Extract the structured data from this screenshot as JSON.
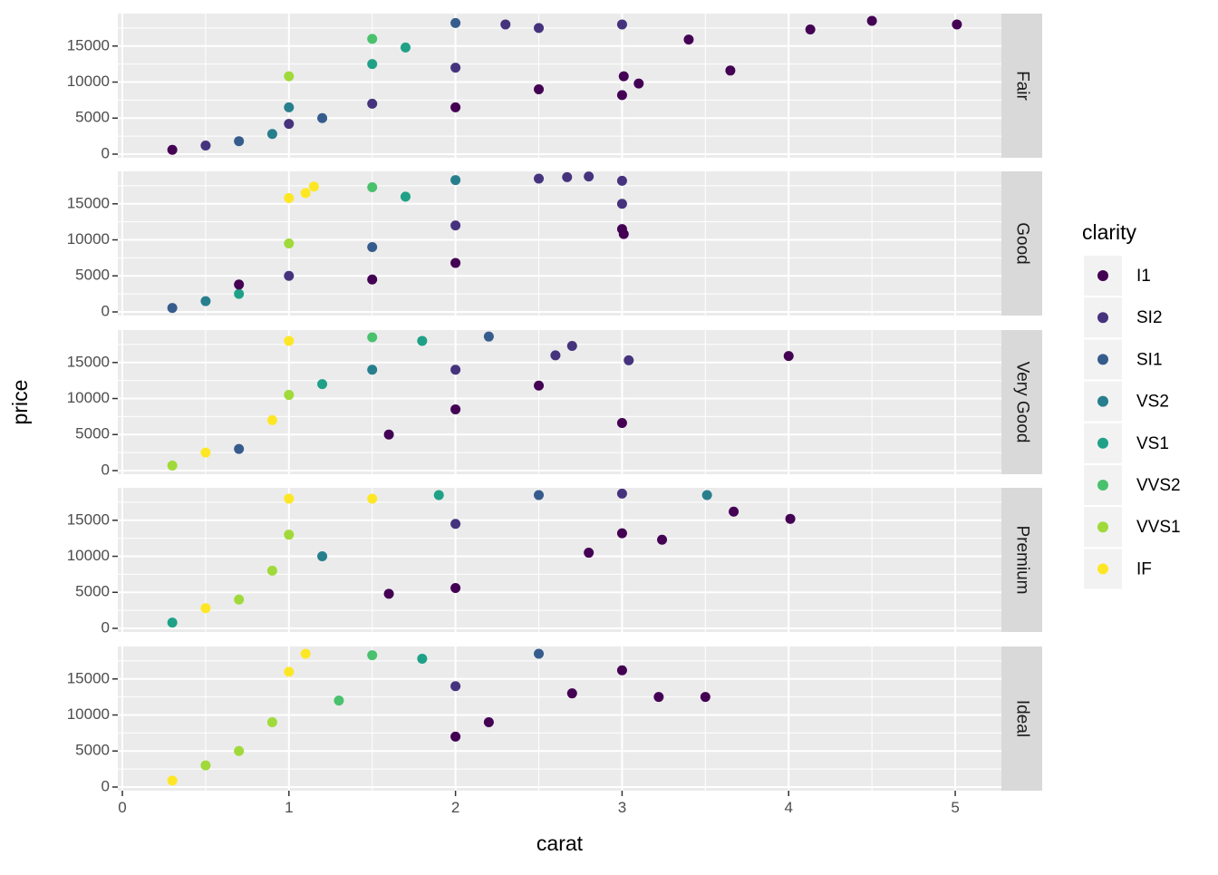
{
  "chart_data": {
    "type": "scatter",
    "facet_variable": "cut",
    "facets": [
      "Fair",
      "Good",
      "Very Good",
      "Premium",
      "Ideal"
    ],
    "xlabel": "carat",
    "ylabel": "price",
    "xlim": [
      0,
      5.25
    ],
    "ylim": [
      0,
      19000
    ],
    "x_ticks": [
      0,
      1,
      2,
      3,
      4,
      5
    ],
    "y_ticks": [
      0,
      5000,
      10000,
      15000
    ],
    "grid": true,
    "legend": {
      "title": "clarity",
      "position": "right",
      "levels": [
        "I1",
        "SI2",
        "SI1",
        "VS2",
        "VS1",
        "VVS2",
        "VVS1",
        "IF"
      ]
    },
    "colors": {
      "I1": "#440154",
      "SI2": "#46337E",
      "SI1": "#365C8D",
      "VS2": "#277F8E",
      "VS1": "#1FA187",
      "VVS2": "#4AC16D",
      "VVS1": "#9FDA3A",
      "IF": "#FDE725"
    },
    "series": [
      {
        "facet": "Fair",
        "points": [
          {
            "x": 0.3,
            "y": 600,
            "c": "I1"
          },
          {
            "x": 0.5,
            "y": 1200,
            "c": "SI2"
          },
          {
            "x": 0.7,
            "y": 1800,
            "c": "SI1"
          },
          {
            "x": 0.9,
            "y": 2800,
            "c": "VS2"
          },
          {
            "x": 1.0,
            "y": 4200,
            "c": "SI2"
          },
          {
            "x": 1.0,
            "y": 6500,
            "c": "VS2"
          },
          {
            "x": 1.0,
            "y": 10800,
            "c": "VVS1"
          },
          {
            "x": 1.2,
            "y": 5000,
            "c": "SI1"
          },
          {
            "x": 1.5,
            "y": 7000,
            "c": "SI2"
          },
          {
            "x": 1.5,
            "y": 12500,
            "c": "VS1"
          },
          {
            "x": 1.5,
            "y": 16000,
            "c": "VVS2"
          },
          {
            "x": 1.7,
            "y": 14800,
            "c": "VS1"
          },
          {
            "x": 2.0,
            "y": 6500,
            "c": "I1"
          },
          {
            "x": 2.0,
            "y": 12000,
            "c": "SI2"
          },
          {
            "x": 2.0,
            "y": 18200,
            "c": "SI1"
          },
          {
            "x": 2.3,
            "y": 18000,
            "c": "SI2"
          },
          {
            "x": 2.5,
            "y": 17500,
            "c": "SI2"
          },
          {
            "x": 2.5,
            "y": 9000,
            "c": "I1"
          },
          {
            "x": 3.0,
            "y": 18000,
            "c": "SI2"
          },
          {
            "x": 3.0,
            "y": 8200,
            "c": "I1"
          },
          {
            "x": 3.01,
            "y": 10800,
            "c": "I1"
          },
          {
            "x": 3.1,
            "y": 9800,
            "c": "I1"
          },
          {
            "x": 3.4,
            "y": 15900,
            "c": "I1"
          },
          {
            "x": 3.65,
            "y": 11600,
            "c": "I1"
          },
          {
            "x": 4.13,
            "y": 17300,
            "c": "I1"
          },
          {
            "x": 4.5,
            "y": 18500,
            "c": "I1"
          },
          {
            "x": 5.01,
            "y": 18000,
            "c": "I1"
          }
        ]
      },
      {
        "facet": "Good",
        "points": [
          {
            "x": 0.3,
            "y": 550,
            "c": "SI1"
          },
          {
            "x": 0.5,
            "y": 1500,
            "c": "VS2"
          },
          {
            "x": 0.7,
            "y": 2500,
            "c": "VS1"
          },
          {
            "x": 0.7,
            "y": 3800,
            "c": "I1"
          },
          {
            "x": 1.0,
            "y": 5000,
            "c": "SI2"
          },
          {
            "x": 1.0,
            "y": 9500,
            "c": "VVS1"
          },
          {
            "x": 1.0,
            "y": 15800,
            "c": "IF"
          },
          {
            "x": 1.1,
            "y": 16500,
            "c": "IF"
          },
          {
            "x": 1.15,
            "y": 17400,
            "c": "IF"
          },
          {
            "x": 1.5,
            "y": 4500,
            "c": "I1"
          },
          {
            "x": 1.5,
            "y": 9000,
            "c": "SI1"
          },
          {
            "x": 1.5,
            "y": 17300,
            "c": "VVS2"
          },
          {
            "x": 1.7,
            "y": 16000,
            "c": "VS1"
          },
          {
            "x": 2.0,
            "y": 6800,
            "c": "I1"
          },
          {
            "x": 2.0,
            "y": 12000,
            "c": "SI2"
          },
          {
            "x": 2.0,
            "y": 18300,
            "c": "VS2"
          },
          {
            "x": 2.5,
            "y": 18500,
            "c": "SI2"
          },
          {
            "x": 2.67,
            "y": 18700,
            "c": "SI2"
          },
          {
            "x": 2.8,
            "y": 18800,
            "c": "SI2"
          },
          {
            "x": 3.0,
            "y": 18200,
            "c": "SI2"
          },
          {
            "x": 3.0,
            "y": 15000,
            "c": "SI2"
          },
          {
            "x": 3.0,
            "y": 11500,
            "c": "I1"
          },
          {
            "x": 3.01,
            "y": 10800,
            "c": "I1"
          }
        ]
      },
      {
        "facet": "Very Good",
        "points": [
          {
            "x": 0.3,
            "y": 700,
            "c": "VVS1"
          },
          {
            "x": 0.5,
            "y": 2500,
            "c": "IF"
          },
          {
            "x": 0.7,
            "y": 3000,
            "c": "SI1"
          },
          {
            "x": 0.9,
            "y": 7000,
            "c": "IF"
          },
          {
            "x": 1.0,
            "y": 10500,
            "c": "VVS1"
          },
          {
            "x": 1.0,
            "y": 18000,
            "c": "IF"
          },
          {
            "x": 1.2,
            "y": 12000,
            "c": "VS1"
          },
          {
            "x": 1.5,
            "y": 14000,
            "c": "VS2"
          },
          {
            "x": 1.5,
            "y": 18500,
            "c": "VVS2"
          },
          {
            "x": 1.6,
            "y": 5000,
            "c": "I1"
          },
          {
            "x": 1.8,
            "y": 18000,
            "c": "VS1"
          },
          {
            "x": 2.0,
            "y": 8500,
            "c": "I1"
          },
          {
            "x": 2.0,
            "y": 14000,
            "c": "SI2"
          },
          {
            "x": 2.2,
            "y": 18600,
            "c": "SI1"
          },
          {
            "x": 2.6,
            "y": 16000,
            "c": "SI2"
          },
          {
            "x": 2.7,
            "y": 17300,
            "c": "SI2"
          },
          {
            "x": 2.5,
            "y": 11800,
            "c": "I1"
          },
          {
            "x": 3.0,
            "y": 6600,
            "c": "I1"
          },
          {
            "x": 3.04,
            "y": 15300,
            "c": "SI2"
          },
          {
            "x": 4.0,
            "y": 15900,
            "c": "I1"
          }
        ]
      },
      {
        "facet": "Premium",
        "points": [
          {
            "x": 0.3,
            "y": 800,
            "c": "VS1"
          },
          {
            "x": 0.5,
            "y": 2800,
            "c": "IF"
          },
          {
            "x": 0.7,
            "y": 4000,
            "c": "VVS1"
          },
          {
            "x": 0.9,
            "y": 8000,
            "c": "VVS1"
          },
          {
            "x": 1.0,
            "y": 13000,
            "c": "VVS1"
          },
          {
            "x": 1.0,
            "y": 18000,
            "c": "IF"
          },
          {
            "x": 1.2,
            "y": 10000,
            "c": "VS2"
          },
          {
            "x": 1.5,
            "y": 18000,
            "c": "IF"
          },
          {
            "x": 1.6,
            "y": 4800,
            "c": "I1"
          },
          {
            "x": 1.9,
            "y": 18500,
            "c": "VS1"
          },
          {
            "x": 2.0,
            "y": 5600,
            "c": "I1"
          },
          {
            "x": 2.0,
            "y": 14500,
            "c": "SI2"
          },
          {
            "x": 2.5,
            "y": 18500,
            "c": "SI1"
          },
          {
            "x": 2.8,
            "y": 10500,
            "c": "I1"
          },
          {
            "x": 3.0,
            "y": 13200,
            "c": "I1"
          },
          {
            "x": 3.0,
            "y": 18700,
            "c": "SI2"
          },
          {
            "x": 3.24,
            "y": 12300,
            "c": "I1"
          },
          {
            "x": 3.51,
            "y": 18500,
            "c": "VS2"
          },
          {
            "x": 3.67,
            "y": 16200,
            "c": "I1"
          },
          {
            "x": 4.01,
            "y": 15200,
            "c": "I1"
          }
        ]
      },
      {
        "facet": "Ideal",
        "points": [
          {
            "x": 0.3,
            "y": 900,
            "c": "IF"
          },
          {
            "x": 0.5,
            "y": 3000,
            "c": "VVS1"
          },
          {
            "x": 0.7,
            "y": 5000,
            "c": "VVS1"
          },
          {
            "x": 0.9,
            "y": 9000,
            "c": "VVS1"
          },
          {
            "x": 1.0,
            "y": 16000,
            "c": "IF"
          },
          {
            "x": 1.1,
            "y": 18500,
            "c": "IF"
          },
          {
            "x": 1.3,
            "y": 12000,
            "c": "VVS2"
          },
          {
            "x": 1.5,
            "y": 18300,
            "c": "VVS2"
          },
          {
            "x": 1.8,
            "y": 17800,
            "c": "VS1"
          },
          {
            "x": 2.0,
            "y": 7000,
            "c": "I1"
          },
          {
            "x": 2.0,
            "y": 14000,
            "c": "SI2"
          },
          {
            "x": 2.2,
            "y": 9000,
            "c": "I1"
          },
          {
            "x": 2.5,
            "y": 18500,
            "c": "SI1"
          },
          {
            "x": 2.7,
            "y": 13000,
            "c": "I1"
          },
          {
            "x": 3.0,
            "y": 16200,
            "c": "I1"
          },
          {
            "x": 3.22,
            "y": 12500,
            "c": "I1"
          },
          {
            "x": 3.5,
            "y": 12500,
            "c": "I1"
          }
        ]
      }
    ]
  }
}
